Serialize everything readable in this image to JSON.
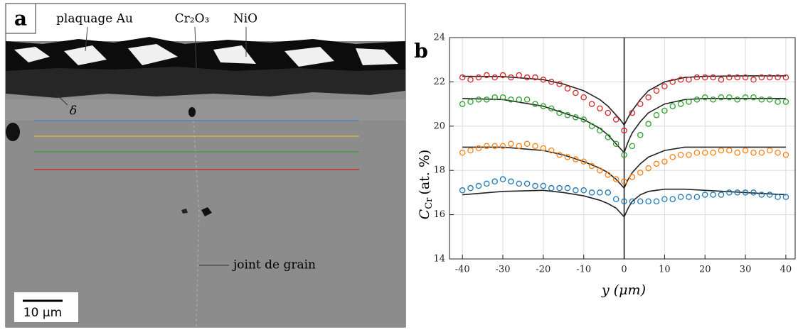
{
  "panel_a": {
    "label": "a",
    "annotations": [
      "plaquage Au",
      "Cr₂O₃",
      "NiO",
      "δ",
      "joint de grain"
    ],
    "scale_bar": "10 μm"
  },
  "chart_data": {
    "type": "scatter",
    "label": "b",
    "ylabel": {
      "main": "C",
      "sub": "Cr",
      "rest": "(at. %)"
    },
    "xlabel": "y (μm)",
    "xlim": [
      -43.2,
      42.3
    ],
    "ylim": [
      14,
      24
    ],
    "xticks": [
      -40,
      -30,
      -20,
      -10,
      0,
      10,
      20,
      30,
      40
    ],
    "yticks": [
      14,
      16,
      18,
      20,
      22,
      24
    ],
    "grid": true,
    "x": [
      -40,
      -38,
      -36,
      -34,
      -32,
      -30,
      -28,
      -26,
      -24,
      -22,
      -20,
      -18,
      -16,
      -14,
      -12,
      -10,
      -8,
      -6,
      -4,
      -2,
      0,
      2,
      4,
      6,
      8,
      10,
      12,
      14,
      16,
      18,
      20,
      22,
      24,
      26,
      28,
      30,
      32,
      34,
      36,
      38,
      40
    ],
    "series": [
      {
        "color": "#d62728",
        "values": [
          22.2,
          22.1,
          22.2,
          22.3,
          22.2,
          22.3,
          22.2,
          22.3,
          22.2,
          22.2,
          22.1,
          22.0,
          21.9,
          21.7,
          21.5,
          21.3,
          21.0,
          20.8,
          20.6,
          20.3,
          19.8,
          20.6,
          21.0,
          21.3,
          21.6,
          21.8,
          22.0,
          22.1,
          22.1,
          22.2,
          22.2,
          22.2,
          22.1,
          22.2,
          22.2,
          22.2,
          22.1,
          22.2,
          22.2,
          22.2,
          22.2
        ]
      },
      {
        "color": "#2ca02c",
        "values": [
          21.0,
          21.1,
          21.2,
          21.2,
          21.3,
          21.3,
          21.2,
          21.2,
          21.2,
          21.0,
          20.9,
          20.8,
          20.6,
          20.5,
          20.4,
          20.3,
          20.0,
          19.8,
          19.5,
          19.2,
          18.7,
          19.1,
          19.6,
          20.1,
          20.5,
          20.7,
          20.9,
          21.0,
          21.1,
          21.2,
          21.3,
          21.2,
          21.3,
          21.3,
          21.2,
          21.3,
          21.3,
          21.2,
          21.2,
          21.1,
          21.1
        ]
      },
      {
        "color": "#ff7f0e",
        "values": [
          18.8,
          18.9,
          19.0,
          19.1,
          19.1,
          19.1,
          19.2,
          19.1,
          19.2,
          19.1,
          19.0,
          18.9,
          18.7,
          18.6,
          18.5,
          18.4,
          18.2,
          18.0,
          17.8,
          17.6,
          17.5,
          17.7,
          17.9,
          18.1,
          18.3,
          18.4,
          18.6,
          18.7,
          18.7,
          18.8,
          18.8,
          18.8,
          18.9,
          18.9,
          18.8,
          18.9,
          18.8,
          18.8,
          18.9,
          18.8,
          18.7
        ]
      },
      {
        "color": "#1f77b4",
        "values": [
          17.1,
          17.2,
          17.3,
          17.4,
          17.5,
          17.6,
          17.5,
          17.4,
          17.4,
          17.3,
          17.3,
          17.2,
          17.2,
          17.2,
          17.1,
          17.1,
          17.0,
          17.0,
          17.0,
          16.7,
          16.6,
          16.6,
          16.6,
          16.6,
          16.6,
          16.7,
          16.7,
          16.8,
          16.8,
          16.8,
          16.9,
          16.9,
          16.9,
          17.0,
          17.0,
          17.0,
          17.0,
          16.9,
          16.9,
          16.8,
          16.8
        ]
      }
    ],
    "fit_x": [
      -40,
      -30,
      -20,
      -15,
      -10,
      -6,
      -4,
      -2,
      -1,
      0,
      1,
      2,
      4,
      6,
      10,
      15,
      20,
      30,
      40
    ],
    "fits": [
      {
        "color": "#222222",
        "values": [
          22.25,
          22.24,
          22.1,
          21.9,
          21.6,
          21.2,
          20.9,
          20.5,
          20.3,
          20.05,
          20.4,
          20.7,
          21.2,
          21.6,
          22.0,
          22.2,
          22.25,
          22.27,
          22.27
        ]
      },
      {
        "color": "#222222",
        "values": [
          21.25,
          21.2,
          20.9,
          20.6,
          20.3,
          19.9,
          19.6,
          19.2,
          19.0,
          18.8,
          19.3,
          19.7,
          20.2,
          20.6,
          21.0,
          21.2,
          21.25,
          21.25,
          21.25
        ]
      },
      {
        "color": "#222222",
        "values": [
          19.05,
          19.05,
          18.9,
          18.7,
          18.4,
          18.1,
          17.9,
          17.6,
          17.4,
          17.2,
          17.6,
          17.9,
          18.3,
          18.6,
          18.9,
          19.05,
          19.05,
          19.05,
          19.05
        ]
      },
      {
        "color": "#222222",
        "values": [
          16.9,
          17.05,
          17.1,
          17.0,
          16.85,
          16.65,
          16.5,
          16.3,
          16.1,
          15.9,
          16.3,
          16.6,
          16.9,
          17.05,
          17.15,
          17.15,
          17.1,
          17.0,
          16.9
        ]
      }
    ]
  }
}
